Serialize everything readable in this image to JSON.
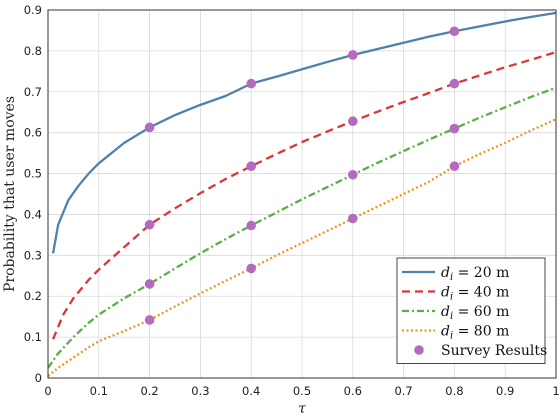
{
  "chart_data": {
    "type": "line",
    "title": "",
    "xlabel": "τ",
    "ylabel": "Probability that user moves",
    "xlim": [
      0,
      1
    ],
    "ylim": [
      0,
      0.9
    ],
    "x_ticks": [
      0,
      0.1,
      0.2,
      0.3,
      0.4,
      0.5,
      0.6,
      0.7,
      0.8,
      0.9,
      1
    ],
    "x_tick_labels": [
      "0",
      "0.1",
      "0.2",
      "0.3",
      "0.4",
      "0.5",
      "0.6",
      "0.7",
      "0.8",
      "0.9",
      "1"
    ],
    "y_ticks": [
      0,
      0.1,
      0.2,
      0.3,
      0.4,
      0.5,
      0.6,
      0.7,
      0.8,
      0.9
    ],
    "y_tick_labels": [
      "0",
      "0.1",
      "0.2",
      "0.3",
      "0.4",
      "0.5",
      "0.6",
      "0.7",
      "0.8",
      "0.9"
    ],
    "grid": true,
    "legend_position": "bottom-right",
    "series": [
      {
        "name": "d_i = 20 m",
        "legend_base": "d",
        "legend_sub": "i",
        "legend_rest": " = 20 m",
        "style": "solid",
        "color": "#4f81ad",
        "x": [
          0.01,
          0.02,
          0.04,
          0.06,
          0.08,
          0.1,
          0.15,
          0.2,
          0.25,
          0.3,
          0.35,
          0.4,
          0.45,
          0.5,
          0.55,
          0.6,
          0.65,
          0.7,
          0.75,
          0.8,
          0.85,
          0.9,
          0.95,
          1.0
        ],
        "y": [
          0.305,
          0.375,
          0.435,
          0.47,
          0.5,
          0.525,
          0.575,
          0.613,
          0.643,
          0.668,
          0.69,
          0.72,
          0.737,
          0.755,
          0.773,
          0.79,
          0.805,
          0.82,
          0.835,
          0.848,
          0.86,
          0.872,
          0.883,
          0.893
        ]
      },
      {
        "name": "d_i = 40 m",
        "legend_base": "d",
        "legend_sub": "i",
        "legend_rest": " = 40 m",
        "style": "dashed",
        "color": "#d9373a",
        "x": [
          0.01,
          0.03,
          0.05,
          0.08,
          0.1,
          0.15,
          0.2,
          0.25,
          0.3,
          0.35,
          0.4,
          0.45,
          0.5,
          0.55,
          0.6,
          0.65,
          0.7,
          0.75,
          0.8,
          0.85,
          0.9,
          0.95,
          1.0
        ],
        "y": [
          0.095,
          0.155,
          0.195,
          0.24,
          0.265,
          0.32,
          0.375,
          0.415,
          0.452,
          0.487,
          0.518,
          0.548,
          0.577,
          0.603,
          0.628,
          0.652,
          0.675,
          0.697,
          0.72,
          0.74,
          0.76,
          0.778,
          0.797
        ]
      },
      {
        "name": "d_i = 60 m",
        "legend_base": "d",
        "legend_sub": "i",
        "legend_rest": " = 60 m",
        "style": "dashdot",
        "color": "#5aaf45",
        "x": [
          0.0,
          0.02,
          0.05,
          0.08,
          0.1,
          0.15,
          0.2,
          0.25,
          0.3,
          0.35,
          0.4,
          0.45,
          0.5,
          0.55,
          0.6,
          0.65,
          0.7,
          0.75,
          0.8,
          0.85,
          0.9,
          0.95,
          1.0
        ],
        "y": [
          0.025,
          0.06,
          0.1,
          0.135,
          0.155,
          0.195,
          0.23,
          0.268,
          0.305,
          0.34,
          0.373,
          0.405,
          0.437,
          0.467,
          0.497,
          0.527,
          0.555,
          0.583,
          0.61,
          0.637,
          0.662,
          0.687,
          0.71
        ]
      },
      {
        "name": "d_i = 80 m",
        "legend_base": "d",
        "legend_sub": "i",
        "legend_rest": " = 80 m",
        "style": "dotted",
        "color": "#f29422",
        "x": [
          0.0,
          0.02,
          0.05,
          0.08,
          0.1,
          0.15,
          0.2,
          0.25,
          0.3,
          0.35,
          0.4,
          0.45,
          0.5,
          0.55,
          0.6,
          0.65,
          0.7,
          0.75,
          0.8,
          0.85,
          0.9,
          0.95,
          1.0
        ],
        "y": [
          0.005,
          0.025,
          0.05,
          0.075,
          0.09,
          0.115,
          0.142,
          0.175,
          0.207,
          0.238,
          0.268,
          0.3,
          0.33,
          0.36,
          0.39,
          0.42,
          0.45,
          0.48,
          0.518,
          0.548,
          0.575,
          0.605,
          0.633
        ]
      },
      {
        "name": "Survey Results",
        "style": "markers",
        "color": "#b36bbf",
        "x": [
          0.2,
          0.2,
          0.2,
          0.2,
          0.4,
          0.4,
          0.4,
          0.4,
          0.6,
          0.6,
          0.6,
          0.6,
          0.8,
          0.8,
          0.8,
          0.8
        ],
        "y": [
          0.613,
          0.375,
          0.23,
          0.142,
          0.72,
          0.518,
          0.373,
          0.268,
          0.79,
          0.628,
          0.497,
          0.39,
          0.848,
          0.72,
          0.61,
          0.518
        ]
      }
    ]
  }
}
